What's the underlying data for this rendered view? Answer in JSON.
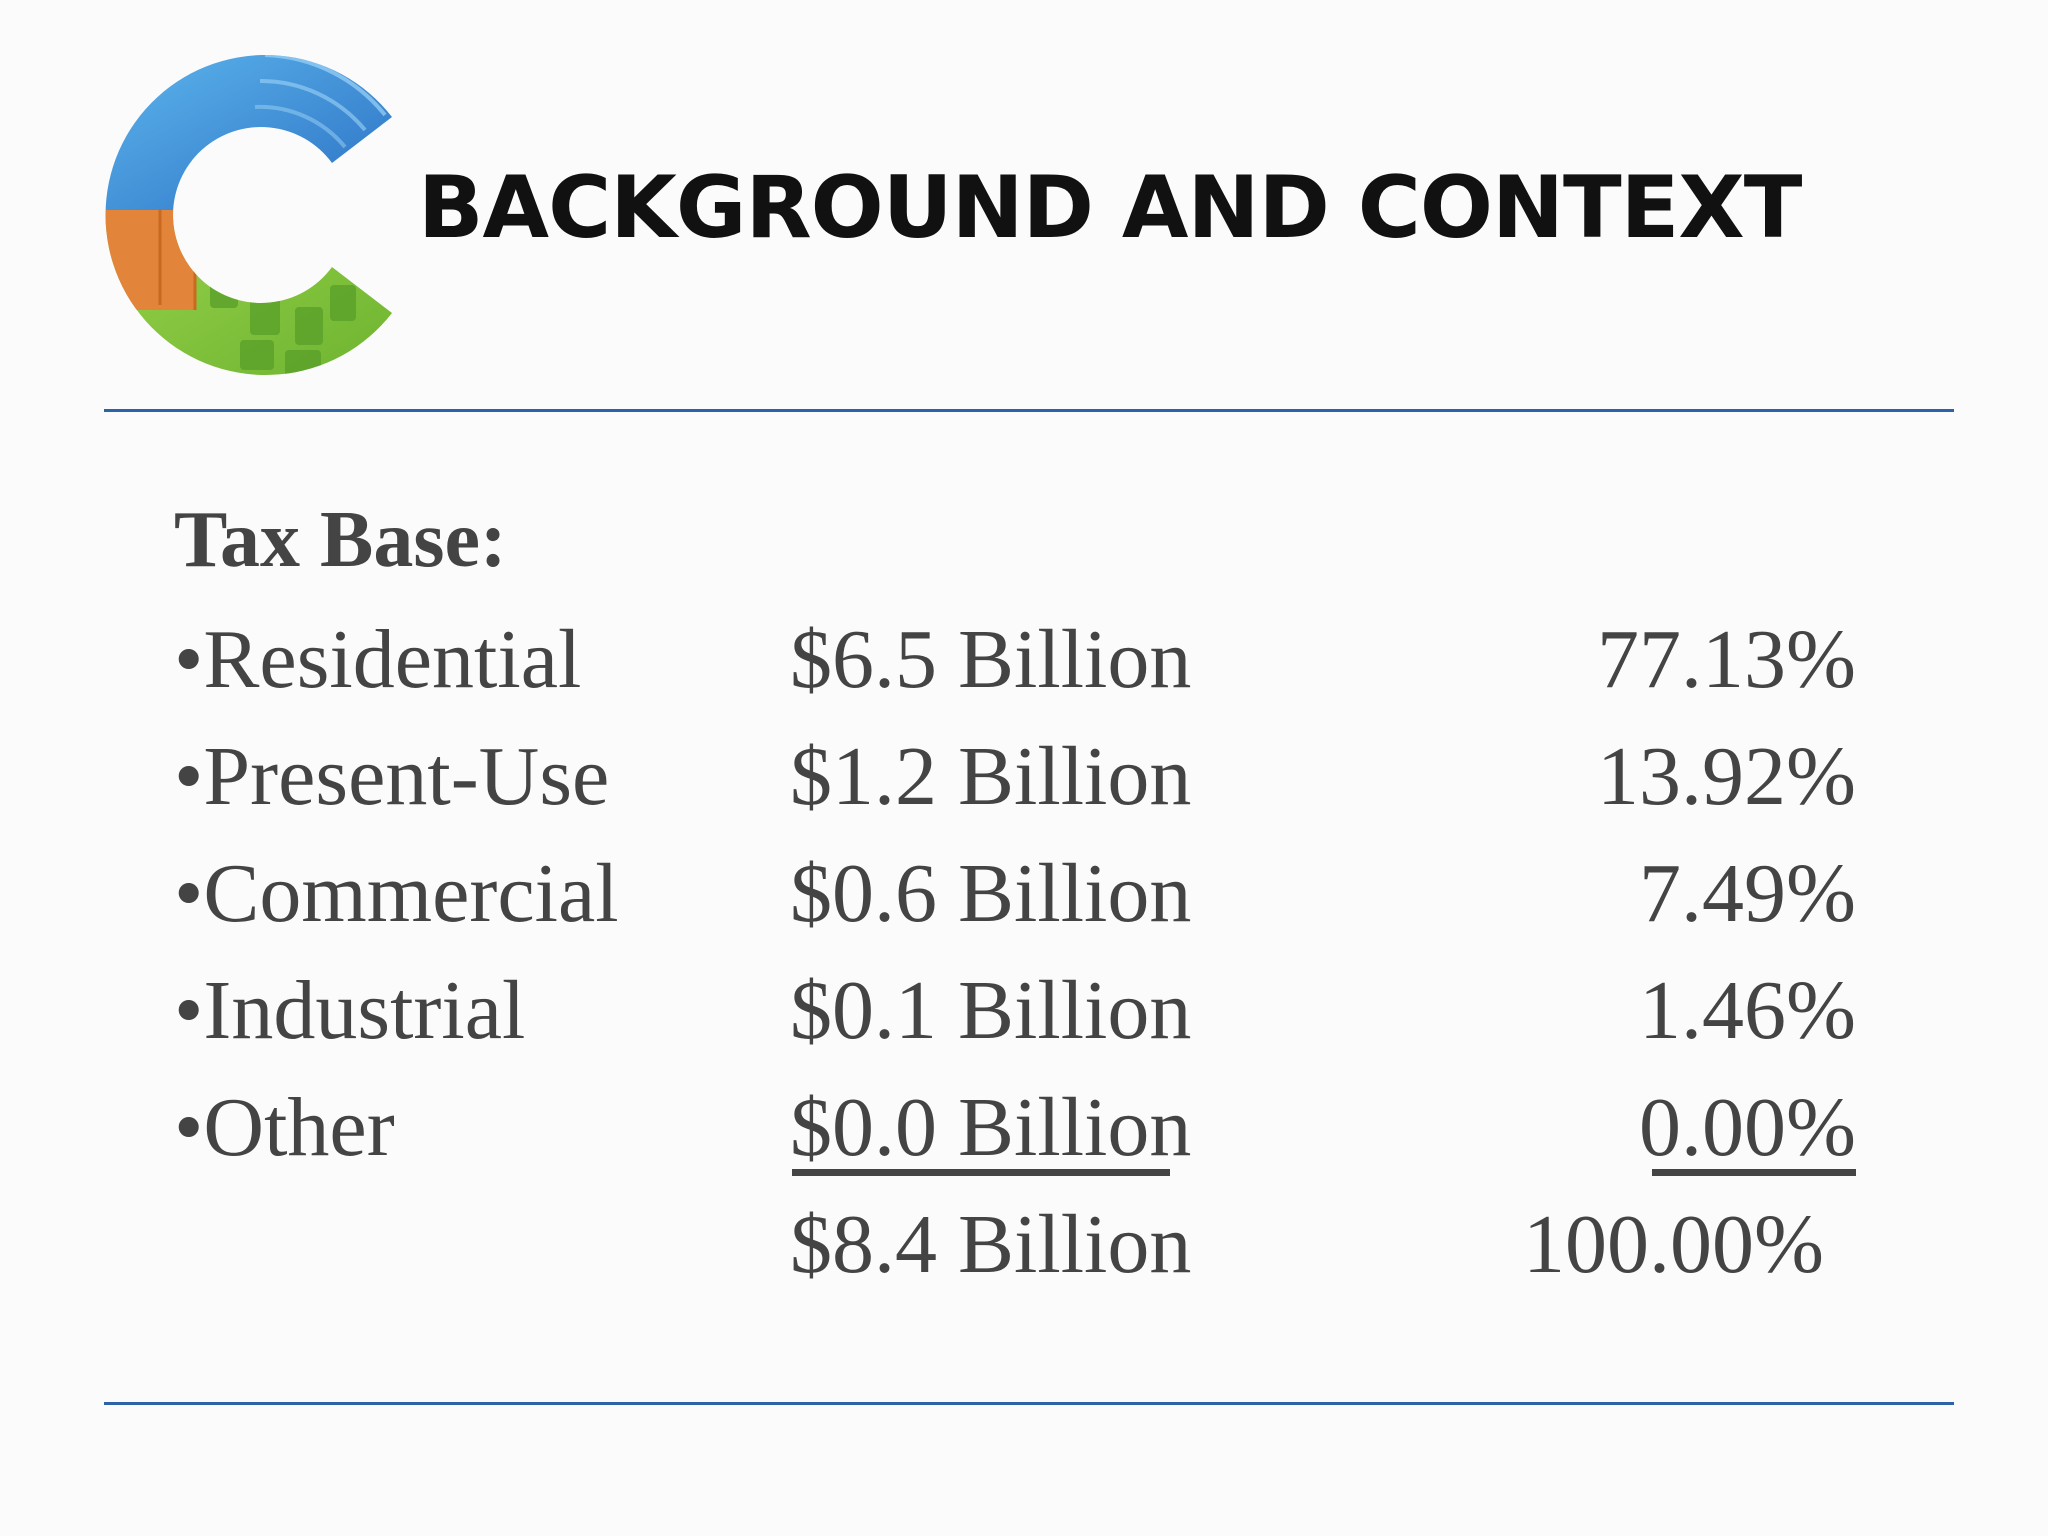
{
  "header": {
    "title": "BACKGROUND AND CONTEXT",
    "logo_icon": "c-logo-icon",
    "logo_colors": [
      "#3d8fd6",
      "#e2843a",
      "#8cc43f"
    ]
  },
  "section": {
    "heading": "Tax Base:",
    "rows": [
      {
        "category": "•Residential",
        "amount": "$6.5 Billion",
        "percent": "77.13%"
      },
      {
        "category": "•Present-Use",
        "amount": "$1.2 Billion",
        "percent": "13.92%"
      },
      {
        "category": "•Commercial",
        "amount": "$0.6 Billion",
        "percent": "7.49%"
      },
      {
        "category": "•Industrial",
        "amount": "$0.1 Billion",
        "percent": "1.46%"
      },
      {
        "category": "•Other",
        "amount": "$0.0 Billion",
        "percent": "0.00%"
      }
    ],
    "total": {
      "amount": "$8.4 Billion",
      "percent": "100.00%"
    }
  },
  "colors": {
    "rule": "#2c62a7",
    "text": "#444444",
    "title": "#111111"
  }
}
